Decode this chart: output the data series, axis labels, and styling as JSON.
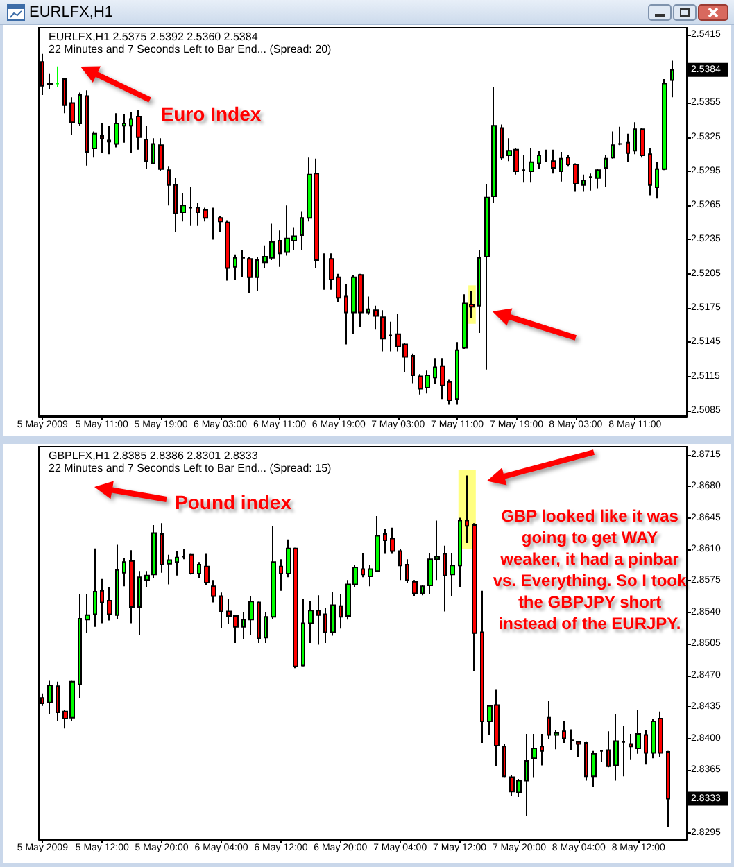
{
  "chart_data": [
    {
      "type": "candlestick",
      "title": "EURLFX,H1",
      "subtitle": "EURLFX,H1 2.5375 2.5392 2.5360 2.5384\n22 Minutes and 7 Seconds Left to Bar End... (Spread: 20)",
      "annotations": [
        "Euro Index",
        {
          "text": "2.5384",
          "y": 2.5384
        }
      ],
      "x": [
        "2009-05-05T03:00",
        "2009-05-05T04:00",
        "2009-05-05T05:00",
        "2009-05-05T06:00",
        "2009-05-05T07:00",
        "2009-05-05T08:00",
        "2009-05-05T09:00",
        "2009-05-05T10:00",
        "2009-05-05T11:00",
        "2009-05-05T12:00",
        "2009-05-05T13:00",
        "2009-05-05T14:00",
        "2009-05-05T15:00",
        "2009-05-05T16:00",
        "2009-05-05T17:00",
        "2009-05-05T18:00",
        "2009-05-05T19:00",
        "2009-05-05T20:00",
        "2009-05-05T21:00",
        "2009-05-05T22:00",
        "2009-05-05T23:00",
        "2009-05-06T00:00",
        "2009-05-06T01:00",
        "2009-05-06T02:00",
        "2009-05-06T03:00",
        "2009-05-06T04:00",
        "2009-05-06T05:00",
        "2009-05-06T06:00",
        "2009-05-06T07:00",
        "2009-05-06T08:00",
        "2009-05-06T09:00",
        "2009-05-06T10:00",
        "2009-05-06T11:00",
        "2009-05-06T12:00",
        "2009-05-06T13:00",
        "2009-05-06T14:00",
        "2009-05-06T15:00",
        "2009-05-06T16:00",
        "2009-05-06T17:00",
        "2009-05-06T18:00",
        "2009-05-06T19:00",
        "2009-05-06T20:00",
        "2009-05-06T21:00",
        "2009-05-06T22:00",
        "2009-05-06T23:00",
        "2009-05-07T00:00",
        "2009-05-07T01:00",
        "2009-05-07T02:00",
        "2009-05-07T03:00",
        "2009-05-07T04:00",
        "2009-05-07T05:00",
        "2009-05-07T06:00",
        "2009-05-07T07:00",
        "2009-05-07T08:00",
        "2009-05-07T09:00",
        "2009-05-07T10:00",
        "2009-05-07T11:00",
        "2009-05-07T12:00",
        "2009-05-07T13:00",
        "2009-05-07T14:00",
        "2009-05-07T15:00",
        "2009-05-07T16:00",
        "2009-05-07T17:00",
        "2009-05-07T18:00",
        "2009-05-07T19:00",
        "2009-05-07T20:00",
        "2009-05-07T21:00",
        "2009-05-07T22:00",
        "2009-05-07T23:00",
        "2009-05-08T00:00",
        "2009-05-08T01:00",
        "2009-05-08T02:00",
        "2009-05-08T03:00",
        "2009-05-08T04:00",
        "2009-05-08T05:00",
        "2009-05-08T06:00",
        "2009-05-08T07:00",
        "2009-05-08T08:00",
        "2009-05-08T09:00",
        "2009-05-08T10:00",
        "2009-05-08T11:00",
        "2009-05-08T12:00",
        "2009-05-08T13:00",
        "2009-05-08T14:00",
        "2009-05-08T15:00",
        "2009-05-08T16:00"
      ],
      "ohlc": [
        [
          2.5391,
          2.5398,
          2.5362,
          2.537
        ],
        [
          2.5371,
          2.5381,
          2.5367,
          2.5372
        ],
        [
          2.5372,
          2.5387,
          2.5369,
          2.5372
        ],
        [
          2.5376,
          2.5377,
          2.5346,
          2.5353
        ],
        [
          2.5355,
          2.536,
          2.5327,
          2.5338
        ],
        [
          2.5337,
          2.5364,
          2.5335,
          2.5362
        ],
        [
          2.5361,
          2.5366,
          2.53,
          2.5312
        ],
        [
          2.5315,
          2.533,
          2.5307,
          2.5328
        ],
        [
          2.5326,
          2.5337,
          2.5311,
          2.5324
        ],
        [
          2.5322,
          2.5335,
          2.531,
          2.5321
        ],
        [
          2.5319,
          2.5346,
          2.5316,
          2.5337
        ],
        [
          2.5335,
          2.5345,
          2.532,
          2.5337
        ],
        [
          2.5335,
          2.5347,
          2.5311,
          2.5341
        ],
        [
          2.5343,
          2.5349,
          2.5314,
          2.5325
        ],
        [
          2.5323,
          2.5335,
          2.5297,
          2.5304
        ],
        [
          2.5302,
          2.5324,
          2.5301,
          2.5319
        ],
        [
          2.5318,
          2.5324,
          2.5295,
          2.5297
        ],
        [
          2.5296,
          2.5299,
          2.5265,
          2.5283
        ],
        [
          2.5283,
          2.5289,
          2.5242,
          2.5258
        ],
        [
          2.5259,
          2.5276,
          2.5251,
          2.5265
        ],
        [
          2.5263,
          2.5281,
          2.5247,
          2.5263
        ],
        [
          2.5263,
          2.5267,
          2.5247,
          2.5259
        ],
        [
          2.5261,
          2.5263,
          2.5251,
          2.5254
        ],
        [
          2.5255,
          2.5263,
          2.5235,
          2.5255
        ],
        [
          2.5254,
          2.5256,
          2.5242,
          2.5251
        ],
        [
          2.525,
          2.5252,
          2.5199,
          2.521
        ],
        [
          2.5211,
          2.5222,
          2.52,
          2.5219
        ],
        [
          2.5219,
          2.5226,
          2.5202,
          2.5219
        ],
        [
          2.5218,
          2.522,
          2.5188,
          2.5202
        ],
        [
          2.5202,
          2.522,
          2.519,
          2.5217
        ],
        [
          2.5215,
          2.523,
          2.521,
          2.522
        ],
        [
          2.5219,
          2.5249,
          2.5217,
          2.5233
        ],
        [
          2.5234,
          2.5243,
          2.5211,
          2.5223
        ],
        [
          2.5224,
          2.5265,
          2.5221,
          2.5236
        ],
        [
          2.5234,
          2.5246,
          2.5226,
          2.5238
        ],
        [
          2.5239,
          2.526,
          2.5226,
          2.5254
        ],
        [
          2.5254,
          2.5307,
          2.5251,
          2.5292
        ],
        [
          2.5293,
          2.5306,
          2.521,
          2.5217
        ],
        [
          2.5218,
          2.5223,
          2.5191,
          2.5218
        ],
        [
          2.5218,
          2.5223,
          2.5191,
          2.52
        ],
        [
          2.5202,
          2.5205,
          2.518,
          2.5184
        ],
        [
          2.5185,
          2.5196,
          2.5143,
          2.5171
        ],
        [
          2.5171,
          2.5204,
          2.5152,
          2.5202
        ],
        [
          2.5204,
          2.5205,
          2.5158,
          2.5171
        ],
        [
          2.5171,
          2.5185,
          2.5169,
          2.5174
        ],
        [
          2.5173,
          2.5177,
          2.5156,
          2.5168
        ],
        [
          2.5167,
          2.5173,
          2.5137,
          2.5148
        ],
        [
          2.5151,
          2.5163,
          2.5137,
          2.5151
        ],
        [
          2.5152,
          2.517,
          2.5137,
          2.5141
        ],
        [
          2.5143,
          2.5144,
          2.5119,
          2.5132
        ],
        [
          2.5133,
          2.5135,
          2.5109,
          2.5116
        ],
        [
          2.5115,
          2.5117,
          2.5099,
          2.5104
        ],
        [
          2.5105,
          2.512,
          2.51,
          2.5116
        ],
        [
          2.5114,
          2.5131,
          2.5108,
          2.5123
        ],
        [
          2.5124,
          2.5131,
          2.5095,
          2.5107
        ],
        [
          2.511,
          2.5112,
          2.509,
          2.5094
        ],
        [
          2.5095,
          2.5145,
          2.509,
          2.5138
        ],
        [
          2.514,
          2.5187,
          2.5139,
          2.5179
        ],
        [
          2.5178,
          2.519,
          2.5166,
          2.5176
        ],
        [
          2.5177,
          2.5226,
          2.5153,
          2.5219
        ],
        [
          2.522,
          2.5284,
          2.5121,
          2.5272
        ],
        [
          2.5273,
          2.5369,
          2.5267,
          2.5335
        ],
        [
          2.5333,
          2.5336,
          2.5305,
          2.5307
        ],
        [
          2.5309,
          2.5324,
          2.5304,
          2.5313
        ],
        [
          2.5314,
          2.5315,
          2.5292,
          2.5295
        ],
        [
          2.5296,
          2.5309,
          2.5285,
          2.5296
        ],
        [
          2.5295,
          2.5315,
          2.5285,
          2.5303
        ],
        [
          2.5302,
          2.5313,
          2.5297,
          2.5309
        ],
        [
          2.5307,
          2.5314,
          2.5303,
          2.5307
        ],
        [
          2.5304,
          2.5314,
          2.5293,
          2.5298
        ],
        [
          2.5295,
          2.5312,
          2.5286,
          2.5306
        ],
        [
          2.5307,
          2.5309,
          2.5299,
          2.5301
        ],
        [
          2.5301,
          2.5302,
          2.5277,
          2.5284
        ],
        [
          2.5283,
          2.5292,
          2.5277,
          2.5287
        ],
        [
          2.529,
          2.5293,
          2.5278,
          2.529
        ],
        [
          2.5289,
          2.5297,
          2.528,
          2.5296
        ],
        [
          2.5298,
          2.5309,
          2.5281,
          2.5306
        ],
        [
          2.5307,
          2.533,
          2.5306,
          2.5318
        ],
        [
          2.5319,
          2.5334,
          2.5318,
          2.5319
        ],
        [
          2.532,
          2.5328,
          2.5303,
          2.5311
        ],
        [
          2.5313,
          2.5338,
          2.531,
          2.5332
        ],
        [
          2.5332,
          2.5333,
          2.5307,
          2.5309
        ],
        [
          2.531,
          2.5315,
          2.5274,
          2.5283
        ],
        [
          2.5281,
          2.5303,
          2.5271,
          2.5297
        ],
        [
          2.5297,
          2.5376,
          2.5296,
          2.5372
        ],
        [
          2.5375,
          2.5392,
          2.536,
          2.5384
        ]
      ],
      "colors": [
        "#ff0000",
        "#00ff00",
        "#00ff00",
        "#ff0000",
        "#ff0000",
        "#00ff00",
        "#ff0000",
        "#00ff00",
        "#ff0000",
        "#ff0000",
        "#00ff00",
        "#00ff00",
        "#00ff00",
        "#ff0000",
        "#ff0000",
        "#00ff00",
        "#ff0000",
        "#ff0000",
        "#ff0000",
        "#00ff00",
        "#000000",
        "#ff0000",
        "#ff0000",
        "#000000",
        "#ff0000",
        "#ff0000",
        "#00ff00",
        "#000000",
        "#ff0000",
        "#00ff00",
        "#00ff00",
        "#00ff00",
        "#ff0000",
        "#00ff00",
        "#00ff00",
        "#00ff00",
        "#00ff00",
        "#ff0000",
        "#000000",
        "#ff0000",
        "#ff0000",
        "#ff0000",
        "#00ff00",
        "#ff0000",
        "#00ff00",
        "#ff0000",
        "#ff0000",
        "#000000",
        "#ff0000",
        "#ff0000",
        "#ff0000",
        "#ff0000",
        "#00ff00",
        "#00ff00",
        "#ff0000",
        "#ff0000",
        "#00ff00",
        "#00ff00",
        "#ff0000",
        "#00ff00",
        "#00ff00",
        "#00ff00",
        "#ff0000",
        "#00ff00",
        "#ff0000",
        "#000000",
        "#00ff00",
        "#00ff00",
        "#000000",
        "#ff0000",
        "#00ff00",
        "#ff0000",
        "#ff0000",
        "#00ff00",
        "#000000",
        "#00ff00",
        "#00ff00",
        "#00ff00",
        "#000000",
        "#ff0000",
        "#00ff00",
        "#ff0000",
        "#ff0000",
        "#00ff00",
        "#00ff00",
        "#00ff00"
      ],
      "xlim": [
        "2009-05-05T02:30",
        "2009-05-08T18:00"
      ],
      "xticks": [
        {
          "value": "2009-05-05T03:00",
          "label": "5 May 2009"
        },
        {
          "value": "2009-05-05T11:00",
          "label": "5 May 11:00"
        },
        {
          "value": "2009-05-05T19:00",
          "label": "5 May 19:00"
        },
        {
          "value": "2009-05-06T03:00",
          "label": "6 May 03:00"
        },
        {
          "value": "2009-05-06T11:00",
          "label": "6 May 11:00"
        },
        {
          "value": "2009-05-06T19:00",
          "label": "6 May 19:00"
        },
        {
          "value": "2009-05-07T03:00",
          "label": "7 May 03:00"
        },
        {
          "value": "2009-05-07T11:00",
          "label": "7 May 11:00"
        },
        {
          "value": "2009-05-07T19:00",
          "label": "7 May 19:00"
        },
        {
          "value": "2009-05-08T03:00",
          "label": "8 May 03:00"
        },
        {
          "value": "2009-05-08T11:00",
          "label": "8 May 11:00"
        }
      ],
      "ylim": [
        2.508,
        2.5421
      ],
      "yticks": [
        2.5085,
        2.5115,
        2.5145,
        2.5175,
        2.5205,
        2.5235,
        2.5265,
        2.5295,
        2.5325,
        2.5355,
        2.5415
      ],
      "bands": [
        {
          "axis": "x",
          "from": "2009-05-07T12:30",
          "to": "2009-05-07T13:30",
          "color": "#ffff80"
        }
      ]
    },
    {
      "type": "candlestick",
      "subtitle": "GBPLFX,H1 2.8385 2.8386 2.8301 2.8333\n22 Minutes and 7 Seconds Left to Bar End... (Spread: 15)",
      "annotations": [
        "Pound index",
        "GBP looked like it was\ngoing to get WAY\nweaker, it had a pinbar\nvs. Everything. So I took\nthe GBPJPY short\ninstead of the EURJPY.",
        {
          "text": "2.8333",
          "y": 2.8333
        }
      ],
      "x": [
        "2009-05-05T04:00",
        "2009-05-05T05:00",
        "2009-05-05T06:00",
        "2009-05-05T07:00",
        "2009-05-05T08:00",
        "2009-05-05T09:00",
        "2009-05-05T10:00",
        "2009-05-05T11:00",
        "2009-05-05T12:00",
        "2009-05-05T13:00",
        "2009-05-05T14:00",
        "2009-05-05T15:00",
        "2009-05-05T16:00",
        "2009-05-05T17:00",
        "2009-05-05T18:00",
        "2009-05-05T19:00",
        "2009-05-05T20:00",
        "2009-05-05T21:00",
        "2009-05-05T22:00",
        "2009-05-05T23:00",
        "2009-05-06T00:00",
        "2009-05-06T01:00",
        "2009-05-06T02:00",
        "2009-05-06T03:00",
        "2009-05-06T04:00",
        "2009-05-06T05:00",
        "2009-05-06T06:00",
        "2009-05-06T07:00",
        "2009-05-06T08:00",
        "2009-05-06T09:00",
        "2009-05-06T10:00",
        "2009-05-06T11:00",
        "2009-05-06T12:00",
        "2009-05-06T13:00",
        "2009-05-06T14:00",
        "2009-05-06T15:00",
        "2009-05-06T16:00",
        "2009-05-06T17:00",
        "2009-05-06T18:00",
        "2009-05-06T19:00",
        "2009-05-06T20:00",
        "2009-05-06T21:00",
        "2009-05-06T22:00",
        "2009-05-06T23:00",
        "2009-05-07T00:00",
        "2009-05-07T01:00",
        "2009-05-07T02:00",
        "2009-05-07T03:00",
        "2009-05-07T04:00",
        "2009-05-07T05:00",
        "2009-05-07T06:00",
        "2009-05-07T07:00",
        "2009-05-07T08:00",
        "2009-05-07T09:00",
        "2009-05-07T10:00",
        "2009-05-07T11:00",
        "2009-05-07T12:00",
        "2009-05-07T13:00",
        "2009-05-07T14:00",
        "2009-05-07T15:00",
        "2009-05-07T16:00",
        "2009-05-07T17:00",
        "2009-05-07T18:00",
        "2009-05-07T19:00",
        "2009-05-07T20:00",
        "2009-05-07T21:00",
        "2009-05-07T22:00",
        "2009-05-07T23:00",
        "2009-05-08T00:00",
        "2009-05-08T01:00",
        "2009-05-08T02:00",
        "2009-05-08T03:00",
        "2009-05-08T04:00",
        "2009-05-08T05:00",
        "2009-05-08T06:00",
        "2009-05-08T07:00",
        "2009-05-08T08:00",
        "2009-05-08T09:00",
        "2009-05-08T10:00",
        "2009-05-08T11:00",
        "2009-05-08T12:00",
        "2009-05-08T13:00",
        "2009-05-08T14:00",
        "2009-05-08T15:00",
        "2009-05-08T16:00"
      ],
      "ohlc": [
        [
          2.8445,
          2.845,
          2.8436,
          2.8439
        ],
        [
          2.844,
          2.8464,
          2.8427,
          2.8459
        ],
        [
          2.8458,
          2.8463,
          2.8419,
          2.8429
        ],
        [
          2.843,
          2.8432,
          2.8411,
          2.8422
        ],
        [
          2.8423,
          2.8464,
          2.8419,
          2.8463
        ],
        [
          2.846,
          2.856,
          2.8445,
          2.8533
        ],
        [
          2.8532,
          2.856,
          2.8517,
          2.8537
        ],
        [
          2.8538,
          2.8611,
          2.8524,
          2.8563
        ],
        [
          2.8564,
          2.8577,
          2.8528,
          2.8551
        ],
        [
          2.8553,
          2.8568,
          2.8531,
          2.8538
        ],
        [
          2.8537,
          2.8615,
          2.8533,
          2.8587
        ],
        [
          2.8584,
          2.86,
          2.8569,
          2.8596
        ],
        [
          2.8597,
          2.8609,
          2.8528,
          2.8546
        ],
        [
          2.8546,
          2.8586,
          2.8515,
          2.8579
        ],
        [
          2.8576,
          2.8586,
          2.8568,
          2.8581
        ],
        [
          2.8582,
          2.8637,
          2.8578,
          2.8628
        ],
        [
          2.8627,
          2.8639,
          2.8584,
          2.8593
        ],
        [
          2.8594,
          2.8604,
          2.8571,
          2.8598
        ],
        [
          2.8596,
          2.8608,
          2.8581,
          2.8601
        ],
        [
          2.8602,
          2.861,
          2.8599,
          2.8602
        ],
        [
          2.8604,
          2.8605,
          2.8582,
          2.8583
        ],
        [
          2.8583,
          2.8596,
          2.8578,
          2.8593
        ],
        [
          2.8591,
          2.8605,
          2.857,
          2.8573
        ],
        [
          2.8569,
          2.8576,
          2.8551,
          2.8558
        ],
        [
          2.8558,
          2.8562,
          2.8523,
          2.8541
        ],
        [
          2.8541,
          2.8555,
          2.8527,
          2.8536
        ],
        [
          2.8536,
          2.8537,
          2.8506,
          2.8524
        ],
        [
          2.8524,
          2.854,
          2.851,
          2.8532
        ],
        [
          2.8532,
          2.8558,
          2.8515,
          2.8552
        ],
        [
          2.8551,
          2.8552,
          2.8506,
          2.8511
        ],
        [
          2.8512,
          2.854,
          2.8506,
          2.8535
        ],
        [
          2.8535,
          2.8636,
          2.8533,
          2.8596
        ],
        [
          2.8591,
          2.8599,
          2.8564,
          2.8583
        ],
        [
          2.8583,
          2.8621,
          2.8579,
          2.8611
        ],
        [
          2.8611,
          2.8612,
          2.8478,
          2.848
        ],
        [
          2.8481,
          2.8555,
          2.848,
          2.8528
        ],
        [
          2.8528,
          2.8553,
          2.8506,
          2.8542
        ],
        [
          2.8542,
          2.8559,
          2.8504,
          2.8537
        ],
        [
          2.8538,
          2.8545,
          2.8506,
          2.8518
        ],
        [
          2.8518,
          2.8563,
          2.8514,
          2.8548
        ],
        [
          2.8547,
          2.856,
          2.8522,
          2.8535
        ],
        [
          2.8536,
          2.8576,
          2.8532,
          2.8571
        ],
        [
          2.8571,
          2.8593,
          2.8568,
          2.859
        ],
        [
          2.8588,
          2.8606,
          2.8579,
          2.8582
        ],
        [
          2.858,
          2.8593,
          2.8569,
          2.8588
        ],
        [
          2.8586,
          2.8647,
          2.8585,
          2.8625
        ],
        [
          2.8627,
          2.8633,
          2.8605,
          2.862
        ],
        [
          2.8622,
          2.8634,
          2.8605,
          2.8608
        ],
        [
          2.8608,
          2.861,
          2.8576,
          2.8592
        ],
        [
          2.8593,
          2.8599,
          2.8573,
          2.8576
        ],
        [
          2.8574,
          2.8576,
          2.8558,
          2.8561
        ],
        [
          2.8561,
          2.857,
          2.8559,
          2.8569
        ],
        [
          2.857,
          2.8606,
          2.856,
          2.8599
        ],
        [
          2.8599,
          2.8642,
          2.8576,
          2.8602
        ],
        [
          2.8605,
          2.8614,
          2.8541,
          2.8581
        ],
        [
          2.8582,
          2.8606,
          2.8558,
          2.8592
        ],
        [
          2.8592,
          2.8645,
          2.8568,
          2.8642
        ],
        [
          2.8642,
          2.8692,
          2.8617,
          2.8636
        ],
        [
          2.8637,
          2.8639,
          2.8475,
          2.8517
        ],
        [
          2.8518,
          2.8564,
          2.8395,
          2.8419
        ],
        [
          2.8419,
          2.8437,
          2.8404,
          2.8436
        ],
        [
          2.8437,
          2.8454,
          2.8369,
          2.8392
        ],
        [
          2.8391,
          2.8394,
          2.8357,
          2.8358
        ],
        [
          2.8357,
          2.8359,
          2.8336,
          2.8341
        ],
        [
          2.834,
          2.8355,
          2.8335,
          2.8353
        ],
        [
          2.8353,
          2.8405,
          2.8314,
          2.8375
        ],
        [
          2.8378,
          2.8405,
          2.8357,
          2.8389
        ],
        [
          2.8391,
          2.8405,
          2.837,
          2.8386
        ],
        [
          2.8423,
          2.8442,
          2.8399,
          2.8404
        ],
        [
          2.8404,
          2.8409,
          2.8388,
          2.8406
        ],
        [
          2.8408,
          2.8419,
          2.8395,
          2.84
        ],
        [
          2.8398,
          2.841,
          2.8387,
          2.8398
        ],
        [
          2.8396,
          2.8396,
          2.8379,
          2.8394
        ],
        [
          2.8395,
          2.8396,
          2.8353,
          2.8358
        ],
        [
          2.8358,
          2.8386,
          2.8346,
          2.8383
        ],
        [
          2.8386,
          2.8387,
          2.8374,
          2.8386
        ],
        [
          2.8387,
          2.8408,
          2.8368,
          2.8369
        ],
        [
          2.837,
          2.8427,
          2.8353,
          2.8397
        ],
        [
          2.8396,
          2.8414,
          2.8358,
          2.8396
        ],
        [
          2.8394,
          2.8405,
          2.8376,
          2.8391
        ],
        [
          2.8389,
          2.8432,
          2.8383,
          2.8405
        ],
        [
          2.8404,
          2.8409,
          2.8371,
          2.8384
        ],
        [
          2.8384,
          2.8422,
          2.8378,
          2.8419
        ],
        [
          2.8422,
          2.843,
          2.8379,
          2.8384
        ],
        [
          2.8385,
          2.8386,
          2.8301,
          2.8333
        ]
      ],
      "colors": [
        "#ff0000",
        "#00ff00",
        "#ff0000",
        "#ff0000",
        "#00ff00",
        "#00ff00",
        "#00ff00",
        "#00ff00",
        "#ff0000",
        "#ff0000",
        "#00ff00",
        "#00ff00",
        "#ff0000",
        "#00ff00",
        "#00ff00",
        "#00ff00",
        "#ff0000",
        "#00ff00",
        "#00ff00",
        "#000000",
        "#ff0000",
        "#00ff00",
        "#ff0000",
        "#ff0000",
        "#ff0000",
        "#ff0000",
        "#ff0000",
        "#00ff00",
        "#00ff00",
        "#ff0000",
        "#00ff00",
        "#00ff00",
        "#ff0000",
        "#00ff00",
        "#ff0000",
        "#00ff00",
        "#00ff00",
        "#ff0000",
        "#ff0000",
        "#00ff00",
        "#ff0000",
        "#00ff00",
        "#00ff00",
        "#ff0000",
        "#00ff00",
        "#00ff00",
        "#ff0000",
        "#ff0000",
        "#ff0000",
        "#ff0000",
        "#ff0000",
        "#00ff00",
        "#00ff00",
        "#00ff00",
        "#ff0000",
        "#00ff00",
        "#00ff00",
        "#ff0000",
        "#ff0000",
        "#ff0000",
        "#00ff00",
        "#ff0000",
        "#ff0000",
        "#ff0000",
        "#00ff00",
        "#00ff00",
        "#00ff00",
        "#ff0000",
        "#ff0000",
        "#00ff00",
        "#ff0000",
        "#000000",
        "#ff0000",
        "#ff0000",
        "#00ff00",
        "#000000",
        "#ff0000",
        "#00ff00",
        "#000000",
        "#ff0000",
        "#00ff00",
        "#ff0000",
        "#00ff00",
        "#ff0000",
        "#ff0000"
      ],
      "xlim": [
        "2009-05-05T03:30",
        "2009-05-08T18:30"
      ],
      "xticks": [
        {
          "value": "2009-05-05T04:00",
          "label": "5 May 2009"
        },
        {
          "value": "2009-05-05T12:00",
          "label": "5 May 12:00"
        },
        {
          "value": "2009-05-05T20:00",
          "label": "5 May 20:00"
        },
        {
          "value": "2009-05-06T04:00",
          "label": "6 May 04:00"
        },
        {
          "value": "2009-05-06T12:00",
          "label": "6 May 12:00"
        },
        {
          "value": "2009-05-06T20:00",
          "label": "6 May 20:00"
        },
        {
          "value": "2009-05-07T04:00",
          "label": "7 May 04:00"
        },
        {
          "value": "2009-05-07T12:00",
          "label": "7 May 12:00"
        },
        {
          "value": "2009-05-07T20:00",
          "label": "7 May 20:00"
        },
        {
          "value": "2009-05-08T04:00",
          "label": "8 May 04:00"
        },
        {
          "value": "2009-05-08T12:00",
          "label": "8 May 12:00"
        }
      ],
      "ylim": [
        2.8288,
        2.8724
      ],
      "yticks": [
        2.8295,
        2.8365,
        {
          "value": 2.84,
          "label": "2.8400"
        },
        2.8435,
        {
          "value": 2.847,
          "label": "2.8470"
        },
        2.8505,
        {
          "value": 2.854,
          "label": "2.8540"
        },
        2.8575,
        {
          "value": 2.861,
          "label": "2.8610"
        },
        2.8645,
        {
          "value": 2.868,
          "label": "2.8680"
        },
        2.8715
      ],
      "bands": [
        {
          "axis": "x",
          "from": "2009-05-07T11:50",
          "to": "2009-05-07T14:10",
          "color": "#ffff80"
        }
      ]
    }
  ]
}
